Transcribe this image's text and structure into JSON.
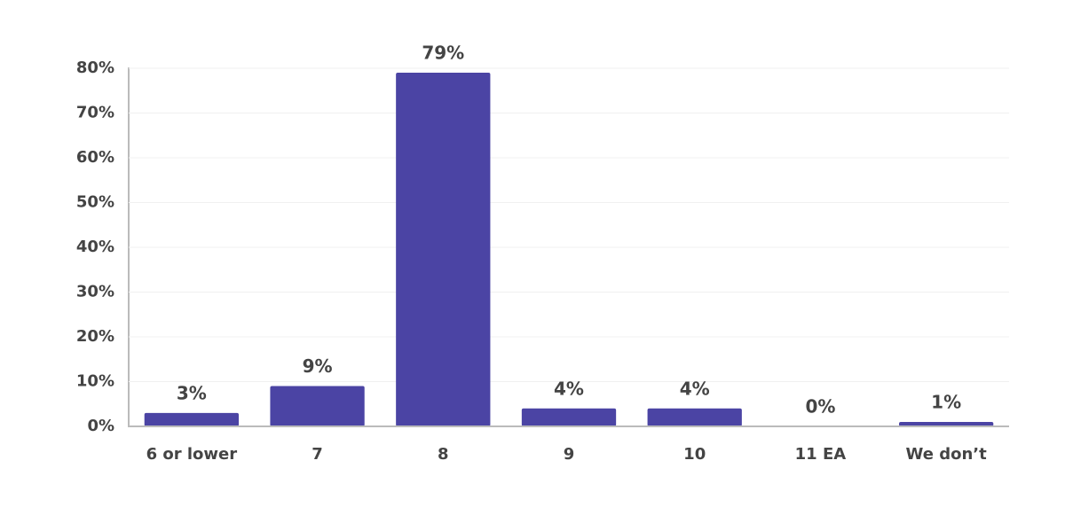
{
  "chart_data": {
    "type": "bar",
    "categories": [
      "6 or lower",
      "7",
      "8",
      "9",
      "10",
      "11 EA",
      "We don’t"
    ],
    "values": [
      3,
      9,
      79,
      4,
      4,
      0,
      1
    ],
    "value_labels": [
      "3%",
      "9%",
      "79%",
      "4%",
      "4%",
      "0%",
      "1%"
    ],
    "color": "#4b44a4",
    "ylim": [
      0,
      80
    ],
    "yticks": [
      {
        "value": 0,
        "label": "0%"
      },
      {
        "value": 10,
        "label": "10%"
      },
      {
        "value": 20,
        "label": "20%"
      },
      {
        "value": 30,
        "label": "30%"
      },
      {
        "value": 40,
        "label": "40%"
      },
      {
        "value": 50,
        "label": "50%"
      },
      {
        "value": 60,
        "label": "60%"
      },
      {
        "value": 70,
        "label": "70%"
      },
      {
        "value": 80,
        "label": "80%"
      }
    ],
    "grid": true
  }
}
